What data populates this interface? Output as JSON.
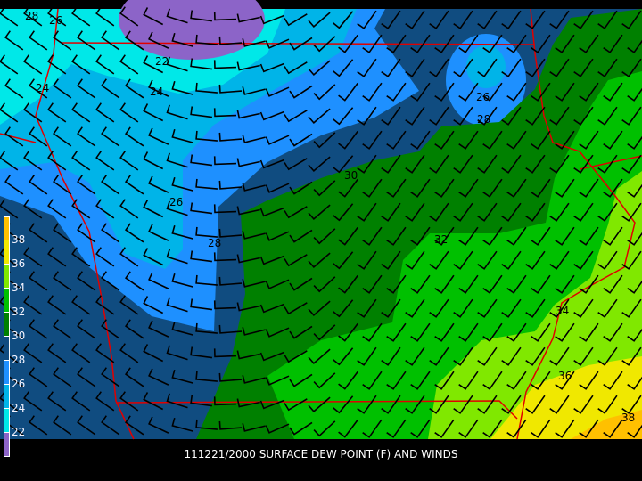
{
  "title": "111221/2000 SURFACE DEW POINT (F) AND WINDS",
  "legend": {
    "labels": [
      "38",
      "36",
      "34",
      "32",
      "30",
      "28",
      "26",
      "24",
      "22"
    ],
    "colors": [
      "#ffc000",
      "#f0e800",
      "#80e800",
      "#00c000",
      "#008000",
      "#104c80",
      "#1e90ff",
      "#00b4e8",
      "#00e8e8",
      "#8c64c8"
    ]
  },
  "contour_labels": [
    "28",
    "26",
    "22",
    "24",
    "24",
    "26",
    "28",
    "30",
    "32",
    "26",
    "28",
    "34",
    "36",
    "38"
  ],
  "colors": {
    "border": "#e00000",
    "barb": "#000000"
  }
}
